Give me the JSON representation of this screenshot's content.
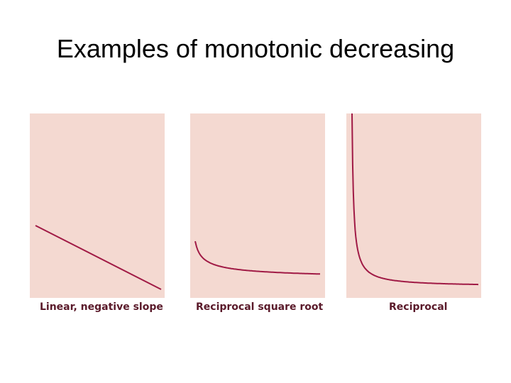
{
  "slide": {
    "title": "Examples of monotonic decreasing"
  },
  "colors": {
    "panel_background": "#f4d9d1",
    "curve": "#a01a45",
    "caption": "#5a1a2a"
  },
  "chart_data": [
    {
      "type": "line",
      "title": "Linear, negative slope",
      "grid": false,
      "axes_visible": false,
      "function": "y = a - b*x",
      "series": [
        {
          "x": [
            0,
            1
          ],
          "values": [
            0.42,
            0.05
          ]
        }
      ]
    },
    {
      "type": "line",
      "title": "Reciprocal square root",
      "grid": false,
      "axes_visible": false,
      "function": "y = 1/sqrt(x)",
      "series": [
        {
          "x": [
            0.03,
            0.05,
            0.08,
            0.12,
            0.2,
            0.35,
            0.6,
            1.0
          ],
          "values": [
            0.38,
            0.22,
            0.16,
            0.13,
            0.1,
            0.08,
            0.07,
            0.065
          ]
        }
      ]
    },
    {
      "type": "line",
      "title": "Reciprocal",
      "grid": false,
      "axes_visible": false,
      "function": "y = 1/x",
      "series": [
        {
          "x": [
            0.02,
            0.04,
            0.07,
            0.1,
            0.15,
            0.25,
            0.4,
            0.7,
            1.0
          ],
          "values": [
            1.0,
            0.62,
            0.35,
            0.22,
            0.14,
            0.1,
            0.08,
            0.07,
            0.065
          ]
        }
      ]
    }
  ]
}
